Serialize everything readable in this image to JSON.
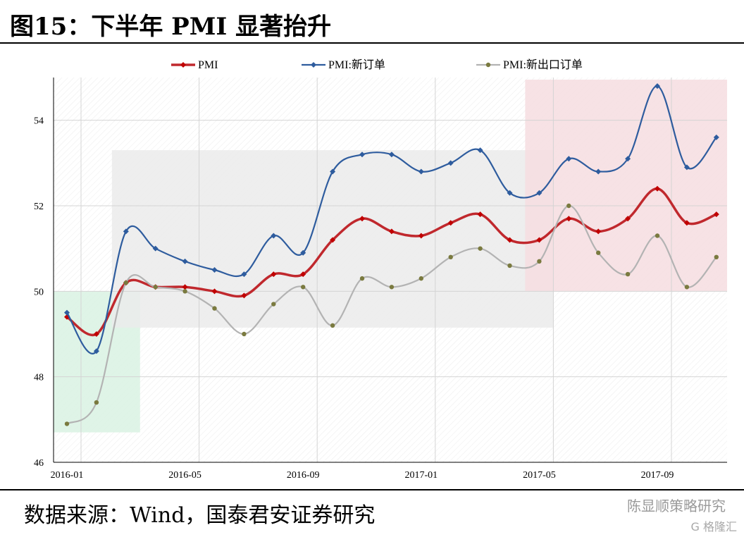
{
  "figure": {
    "title": "图15：下半年 PMI 显著抬升",
    "source": "数据来源：Wind，国泰君安证券研究",
    "watermark": "陈显顺策略研究",
    "watermark2": "G 格隆汇"
  },
  "chart_data": {
    "type": "line",
    "x": [
      "2016-01",
      "2016-02",
      "2016-03",
      "2016-04",
      "2016-05",
      "2016-06",
      "2016-07",
      "2016-08",
      "2016-09",
      "2016-10",
      "2016-11",
      "2016-12",
      "2017-01",
      "2017-02",
      "2017-03",
      "2017-04",
      "2017-05",
      "2017-06",
      "2017-07",
      "2017-08",
      "2017-09",
      "2017-10",
      "2017-11"
    ],
    "x_tick_labels": [
      "2016-01",
      "2016-05",
      "2016-09",
      "2017-01",
      "2017-05",
      "2017-09"
    ],
    "y_ticks": [
      46,
      48,
      50,
      52,
      54
    ],
    "ylim": [
      46,
      55
    ],
    "grid": true,
    "legend_position": "top",
    "series": [
      {
        "name": "PMI",
        "color": "#c0282d",
        "values": [
          49.4,
          49.0,
          50.2,
          50.1,
          50.1,
          50.0,
          49.9,
          50.4,
          50.4,
          51.2,
          51.7,
          51.4,
          51.3,
          51.6,
          51.8,
          51.2,
          51.2,
          51.7,
          51.4,
          51.7,
          52.4,
          51.6,
          51.8
        ]
      },
      {
        "name": "PMI:新订单",
        "color": "#2e5c9e",
        "values": [
          49.5,
          48.6,
          51.4,
          51.0,
          50.7,
          50.5,
          50.4,
          51.3,
          50.9,
          52.8,
          53.2,
          53.2,
          52.8,
          53.0,
          53.3,
          52.3,
          52.3,
          53.1,
          52.8,
          53.1,
          54.8,
          52.9,
          53.6
        ]
      },
      {
        "name": "PMI:新出口订单",
        "color": "#b3b3b3",
        "values": [
          46.9,
          47.4,
          50.2,
          50.1,
          50.0,
          49.6,
          49.0,
          49.7,
          50.1,
          49.2,
          50.3,
          50.1,
          50.3,
          50.8,
          51.0,
          50.6,
          50.7,
          52.0,
          50.9,
          50.4,
          51.3,
          50.1,
          50.8
        ]
      }
    ],
    "highlight_regions": [
      {
        "name": "green",
        "color": "#d9f2e3",
        "x_start": "2016-01",
        "x_end": "2016-03",
        "y_range": [
          46.7,
          50.0
        ]
      },
      {
        "name": "gray",
        "color": "#ebebeb",
        "x_start": "2016-03",
        "x_end": "2017-05",
        "y_range": [
          49.15,
          53.3
        ]
      },
      {
        "name": "red",
        "color": "#f6dde0",
        "x_start": "2017-05",
        "x_end": "2017-11",
        "y_range": [
          50.0,
          54.95
        ]
      }
    ]
  }
}
